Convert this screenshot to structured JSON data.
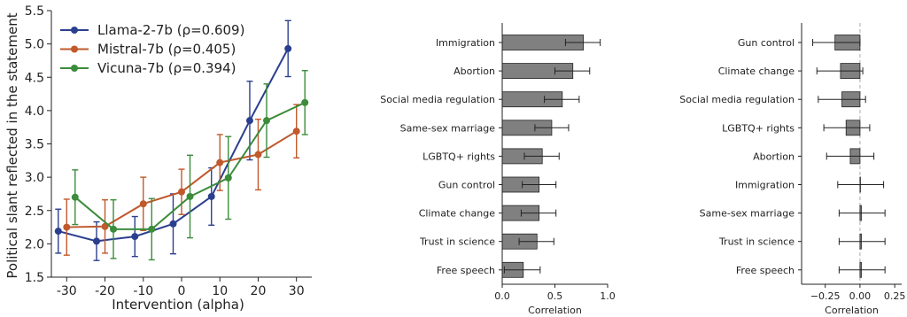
{
  "chart_data": [
    {
      "type": "line",
      "xlabel": "Intervention (alpha)",
      "ylabel": "Political slant reflected in the statement",
      "x": [
        -30,
        -20,
        -10,
        0,
        10,
        20,
        30
      ],
      "xticks": [
        "-30",
        "-20",
        "-10",
        "0",
        "10",
        "20",
        "30"
      ],
      "ylim": [
        1.5,
        5.5
      ],
      "yticks": [
        "1.5",
        "2.0",
        "2.5",
        "3.0",
        "3.5",
        "4.0",
        "4.5",
        "5.0",
        "5.5"
      ],
      "legend_position": "top-left",
      "series": [
        {
          "name": "Llama-2-7b (ρ=0.609)",
          "color": "#2b3f8f",
          "values": [
            2.19,
            2.04,
            2.11,
            2.3,
            2.71,
            3.85,
            4.93
          ],
          "err": [
            0.33,
            0.29,
            0.3,
            0.45,
            0.43,
            0.59,
            0.42
          ]
        },
        {
          "name": "Mistral-7b (ρ=0.405)",
          "color": "#c0592c",
          "values": [
            2.25,
            2.26,
            2.6,
            2.78,
            3.22,
            3.34,
            3.69
          ],
          "err": [
            0.42,
            0.4,
            0.4,
            0.34,
            0.42,
            0.53,
            0.4
          ]
        },
        {
          "name": "Vicuna-7b (ρ=0.394)",
          "color": "#3b8c3b",
          "values": [
            2.7,
            2.22,
            2.22,
            2.71,
            2.99,
            3.85,
            4.12
          ],
          "err": [
            0.41,
            0.44,
            0.46,
            0.62,
            0.62,
            0.55,
            0.48
          ]
        }
      ]
    },
    {
      "type": "bar",
      "orientation": "horizontal",
      "xlabel": "Correlation",
      "xlim": [
        0,
        1.0
      ],
      "xticks": [
        0,
        0.5,
        1.0
      ],
      "xtick_labels": [
        "0.0",
        "0.5",
        "1.0"
      ],
      "categories": [
        "Immigration",
        "Abortion",
        "Social media regulation",
        "Same-sex marriage",
        "LGBTQ+ rights",
        "Gun control",
        "Climate change",
        "Trust in science",
        "Free speech"
      ],
      "values": [
        0.77,
        0.67,
        0.57,
        0.47,
        0.38,
        0.35,
        0.35,
        0.33,
        0.2
      ],
      "err_low": [
        0.6,
        0.5,
        0.4,
        0.31,
        0.21,
        0.19,
        0.18,
        0.16,
        0.02
      ],
      "err_high": [
        0.93,
        0.83,
        0.73,
        0.63,
        0.54,
        0.51,
        0.51,
        0.49,
        0.36
      ],
      "bar_color": "#808080"
    },
    {
      "type": "bar",
      "orientation": "horizontal",
      "xlabel": "Correlation",
      "xlim": [
        -0.42,
        0.3
      ],
      "xticks": [
        -0.25,
        0.0,
        0.25
      ],
      "xtick_labels": [
        "−0.25",
        "0.00",
        "0.25"
      ],
      "categories": [
        "Gun control",
        "Climate change",
        "Social media regulation",
        "LGBTQ+ rights",
        "Abortion",
        "Immigration",
        "Same-sex marriage",
        "Trust in science",
        "Free speech"
      ],
      "values": [
        -0.18,
        -0.14,
        -0.13,
        -0.1,
        -0.07,
        0.0,
        0.01,
        0.01,
        0.01
      ],
      "err_low": [
        -0.34,
        -0.31,
        -0.3,
        -0.26,
        -0.24,
        -0.16,
        -0.15,
        -0.15,
        -0.15
      ],
      "err_high": [
        0.0,
        0.02,
        0.04,
        0.07,
        0.1,
        0.17,
        0.18,
        0.18,
        0.18
      ],
      "bar_color": "#808080",
      "zero_line": true
    }
  ]
}
